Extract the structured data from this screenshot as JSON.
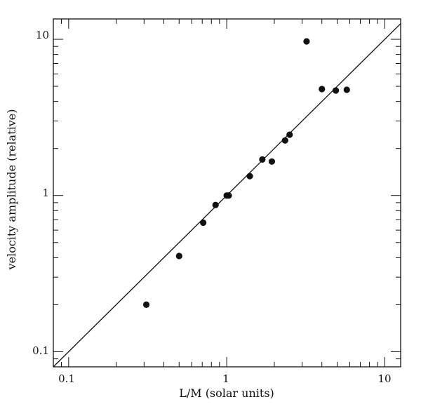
{
  "chart_data": {
    "type": "scatter",
    "xlabel": "L/M (solar units)",
    "ylabel": "velocity amplitude (relative)",
    "xscale": "log",
    "yscale": "log",
    "xlim": [
      0.08,
      12.6
    ],
    "ylim": [
      0.08,
      13.5
    ],
    "x_tick_labels": [
      "0.1",
      "1",
      "10"
    ],
    "y_tick_labels": [
      "0.1",
      "1",
      "10"
    ],
    "grid": false,
    "legend": "none",
    "points": [
      {
        "x": 0.31,
        "y": 0.2
      },
      {
        "x": 0.5,
        "y": 0.41
      },
      {
        "x": 0.71,
        "y": 0.67
      },
      {
        "x": 0.85,
        "y": 0.87
      },
      {
        "x": 1.0,
        "y": 1.0
      },
      {
        "x": 1.03,
        "y": 1.0
      },
      {
        "x": 1.4,
        "y": 1.33
      },
      {
        "x": 1.68,
        "y": 1.7
      },
      {
        "x": 1.93,
        "y": 1.65
      },
      {
        "x": 2.34,
        "y": 2.25
      },
      {
        "x": 2.5,
        "y": 2.45
      },
      {
        "x": 3.2,
        "y": 9.7
      },
      {
        "x": 4.0,
        "y": 4.8
      },
      {
        "x": 4.9,
        "y": 4.7
      },
      {
        "x": 5.75,
        "y": 4.75
      }
    ],
    "fit_line": {
      "x": [
        0.08,
        12.6
      ],
      "y": [
        0.08,
        12.6
      ]
    }
  }
}
